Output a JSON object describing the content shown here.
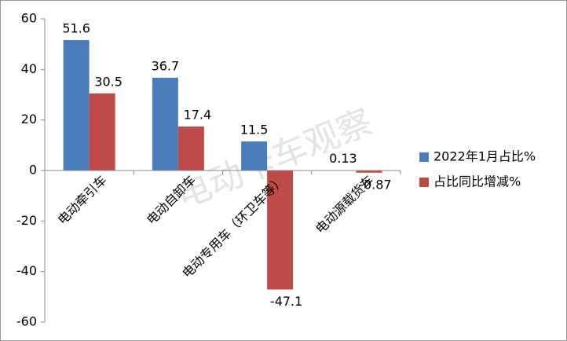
{
  "chart_data": {
    "type": "bar",
    "watermark": "电动卡车观察",
    "categories": [
      "电动牵引车",
      "电动自卸车",
      "电动专用车（环卫车等）",
      "电动源载货车"
    ],
    "series": [
      {
        "name": "2022年1月占比%",
        "color": "#4a7ebb",
        "values": [
          51.6,
          36.7,
          11.5,
          0.13
        ]
      },
      {
        "name": "占比同比增减%",
        "color": "#be4b48",
        "values": [
          30.5,
          17.4,
          -47.1,
          -0.87
        ]
      }
    ],
    "ylim": [
      -60,
      60
    ],
    "yticks": [
      -60,
      -40,
      -20,
      0,
      20,
      40,
      60
    ],
    "grid": false,
    "legend": "right"
  }
}
